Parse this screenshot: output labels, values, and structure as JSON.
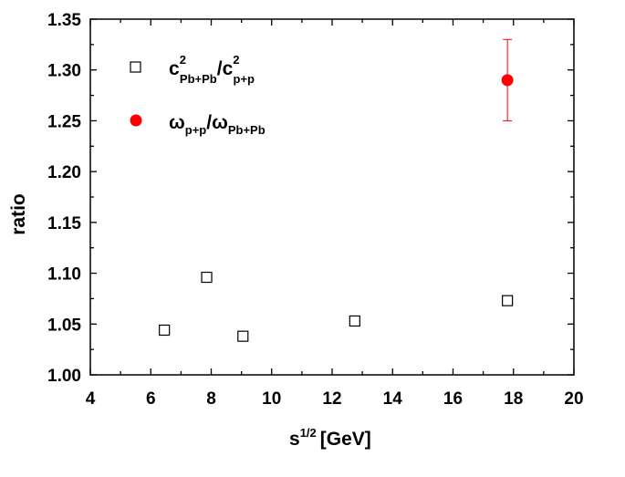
{
  "chart_data": {
    "type": "scatter",
    "title": "",
    "xlabel": "s",
    "xlabel_sup": "1/2",
    "xlabel_unit": "[GeV]",
    "ylabel": "ratio",
    "xlim": [
      4,
      20
    ],
    "ylim": [
      1.0,
      1.35
    ],
    "xticks": [
      4,
      6,
      8,
      10,
      12,
      14,
      16,
      18,
      20
    ],
    "yticks": [
      1.0,
      1.05,
      1.1,
      1.15,
      1.2,
      1.25,
      1.3,
      1.35
    ],
    "ytick_labels": [
      "1.00",
      "1.05",
      "1.10",
      "1.15",
      "1.20",
      "1.25",
      "1.30",
      "1.35"
    ],
    "grid": false,
    "legend_position": "top-left",
    "series": [
      {
        "marker": "open-square",
        "color": "#000000",
        "legend": {
          "main1": "c",
          "sup1": "2",
          "sub1": "Pb+Pb",
          "slash": "/",
          "main2": "c",
          "sup2": "2",
          "sub2": "p+p"
        },
        "points": [
          {
            "x": 6.45,
            "y": 1.044
          },
          {
            "x": 7.85,
            "y": 1.096
          },
          {
            "x": 9.05,
            "y": 1.038
          },
          {
            "x": 12.75,
            "y": 1.053
          },
          {
            "x": 17.8,
            "y": 1.073
          }
        ]
      },
      {
        "marker": "filled-circle",
        "color": "#ff0000",
        "legend": {
          "main1": "ω",
          "sub1": "p+p",
          "slash": "/",
          "main2": "ω",
          "sub2": "Pb+Pb"
        },
        "points": [
          {
            "x": 17.8,
            "y": 1.29,
            "err_low": 1.25,
            "err_high": 1.33
          }
        ]
      }
    ]
  }
}
